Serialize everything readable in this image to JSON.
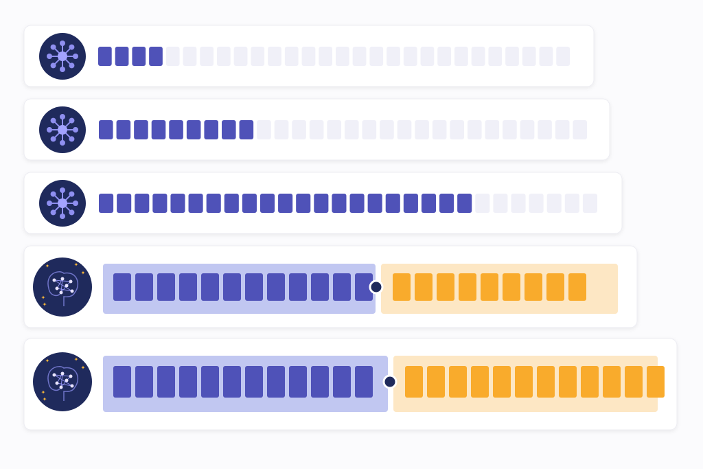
{
  "rows": [
    {
      "icon": "network",
      "filled": 4,
      "empty": 24
    },
    {
      "icon": "network",
      "filled": 9,
      "empty": 19
    },
    {
      "icon": "network",
      "filled": 21,
      "empty": 7
    },
    {
      "icon": "brain",
      "blue": 12,
      "orange": 9
    },
    {
      "icon": "brain",
      "blue": 12,
      "orange": 12
    }
  ]
}
